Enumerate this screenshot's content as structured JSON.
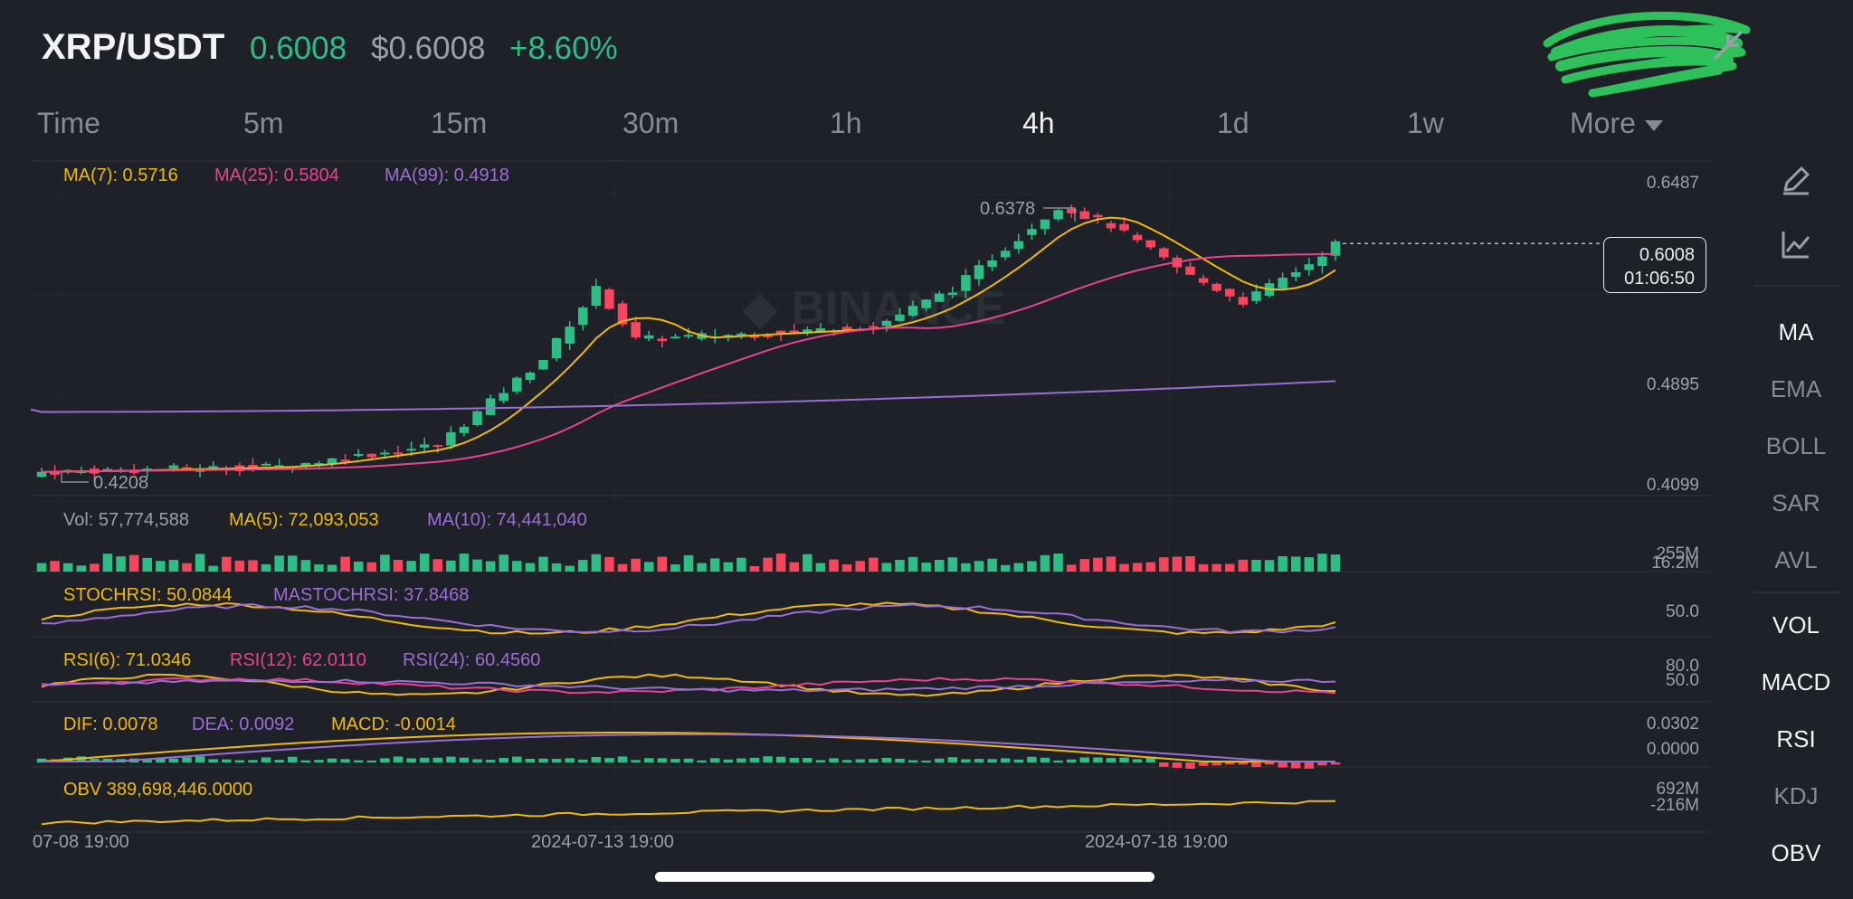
{
  "header": {
    "symbol": "XRP/USDT",
    "last_price": "0.6008",
    "usd_price": "$0.6008",
    "change": "+8.60%"
  },
  "tabs": [
    {
      "label": "Time"
    },
    {
      "label": "5m"
    },
    {
      "label": "15m"
    },
    {
      "label": "30m"
    },
    {
      "label": "1h"
    },
    {
      "label": "4h",
      "active": true
    },
    {
      "label": "1d"
    },
    {
      "label": "1w"
    },
    {
      "label": "More"
    }
  ],
  "main_chart": {
    "ma7": "MA(7): 0.5716",
    "ma25": "MA(25): 0.5804",
    "ma99": "MA(99): 0.4918",
    "high_label": "0.6378",
    "low_label": "0.4208",
    "axis": [
      "0.6487",
      "0.4895",
      "0.4099"
    ],
    "current_price": "0.6008",
    "countdown": "01:06:50"
  },
  "volume": {
    "vol": "Vol: 57,774,588",
    "ma5": "MA(5): 72,093,053",
    "ma10": "MA(10): 74,441,040",
    "axis_top": "255M",
    "axis_bottom": "16.2M"
  },
  "stochrsi": {
    "stoch": "STOCHRSI: 50.0844",
    "mastoch": "MASTOCHRSI: 37.8468",
    "axis": "50.0"
  },
  "rsi": {
    "rsi6": "RSI(6): 71.0346",
    "rsi12": "RSI(12): 62.0110",
    "rsi24": "RSI(24): 60.4560",
    "axis_top": "80.0",
    "axis_bottom": "50.0"
  },
  "macd": {
    "dif": "DIF: 0.0078",
    "dea": "DEA: 0.0092",
    "macd": "MACD: -0.0014",
    "axis_top": "0.0302",
    "axis_bottom": "0.0000"
  },
  "obv": {
    "obv": "OBV 389,698,446.0000",
    "axis_top": "692M",
    "axis_bottom": "-216M"
  },
  "time_axis": [
    "07-08 19:00",
    "2024-07-13 19:00",
    "2024-07-18 19:00"
  ],
  "sidebar": [
    "MA",
    "EMA",
    "BOLL",
    "SAR",
    "AVL",
    "VOL",
    "MACD",
    "RSI",
    "KDJ",
    "OBV"
  ],
  "colors": {
    "up": "#2ebd85",
    "down": "#f6465d",
    "ma7": "#f0b90b",
    "ma25": "#e84393",
    "ma99": "#9b6dd6",
    "background": "#1e2128"
  }
}
